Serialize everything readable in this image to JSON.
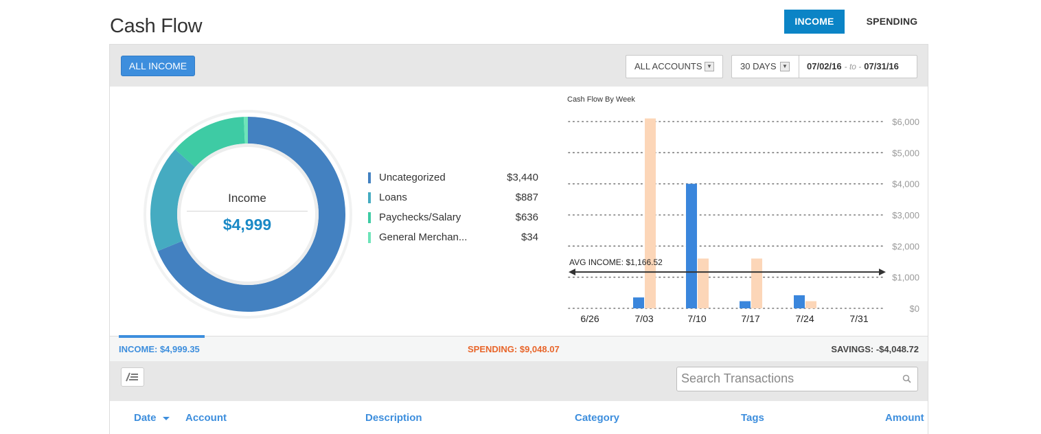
{
  "page": {
    "title": "Cash Flow"
  },
  "top_toggle": {
    "income_label": "INCOME",
    "spending_label": "SPENDING"
  },
  "filters": {
    "all_income_label": "ALL INCOME",
    "accounts_label": "ALL ACCOUNTS",
    "period_label": "30 DAYS",
    "date_from": "07/02/16",
    "date_to_sep": "- to -",
    "date_to": "07/31/16"
  },
  "donut": {
    "center_label": "Income",
    "center_value": "$4,999",
    "slices": [
      {
        "name": "Uncategorized",
        "amount": "$3,440",
        "value": 3440,
        "color": "#4381c1"
      },
      {
        "name": "Loans",
        "amount": "$887",
        "value": 887,
        "color": "#45abc1"
      },
      {
        "name": "Paychecks/Salary",
        "amount": "$636",
        "value": 636,
        "color": "#3ecba4"
      },
      {
        "name": "General Merchan...",
        "amount": "$34",
        "value": 34,
        "color": "#6ee4b9"
      }
    ]
  },
  "chart_data": {
    "type": "bar",
    "title": "Cash Flow By Week",
    "categories": [
      "6/26",
      "7/03",
      "7/10",
      "7/17",
      "7/24",
      "7/31"
    ],
    "series": [
      {
        "values": [
          0,
          350,
          4000,
          230,
          420,
          0
        ],
        "color": "#3a86dc"
      },
      {
        "values": [
          0,
          6100,
          1600,
          1600,
          230,
          0
        ],
        "color": "#fcd6b8"
      }
    ],
    "ylim": [
      0,
      6000
    ],
    "yticks": [
      "$0",
      "$1,000",
      "$2,000",
      "$3,000",
      "$4,000",
      "$5,000",
      "$6,000"
    ],
    "avg_line": {
      "label": "AVG INCOME: $1,166.52",
      "value": 1166.52
    },
    "grid": true
  },
  "summary": {
    "income": "INCOME: $4,999.35",
    "spending": "SPENDING: $9,048.07",
    "savings": "SAVINGS: -$4,048.72"
  },
  "transactions": {
    "search_placeholder": "Search Transactions",
    "columns": [
      "Date",
      "Account",
      "Description",
      "Category",
      "Tags",
      "Amount"
    ]
  },
  "colors": {
    "accent": "#0b84c6",
    "income_blue": "#3d8edd",
    "spending_orange": "#e8652a"
  }
}
